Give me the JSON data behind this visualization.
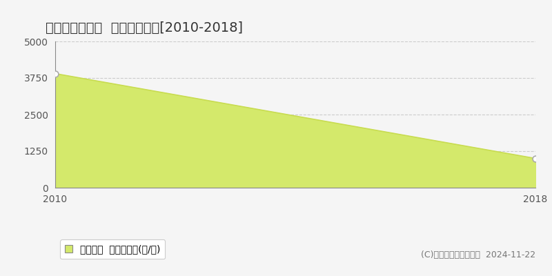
{
  "title": "都郡郡郡町漆塚  農地価格推移[2010-2018]",
  "years": [
    2010,
    2018
  ],
  "values": [
    3900,
    1000
  ],
  "fill_color": "#d4e96b",
  "line_color": "#c8dc50",
  "point_facecolor": "#ffffff",
  "point_edge_color": "#aaaaaa",
  "background_color": "#f5f5f5",
  "plot_bg_color": "#f5f5f5",
  "ylim": [
    0,
    5000
  ],
  "xlim": [
    2010,
    2018
  ],
  "yticks": [
    0,
    1250,
    2500,
    3750,
    5000
  ],
  "xticks": [
    2010,
    2018
  ],
  "grid_color": "#cccccc",
  "legend_label": "農地価格  平均嵪単価(円/嵪)",
  "copyright_text": "(C)土地価格ドットコム  2024-11-22",
  "title_fontsize": 14,
  "tick_fontsize": 10,
  "legend_fontsize": 10,
  "copyright_fontsize": 9
}
